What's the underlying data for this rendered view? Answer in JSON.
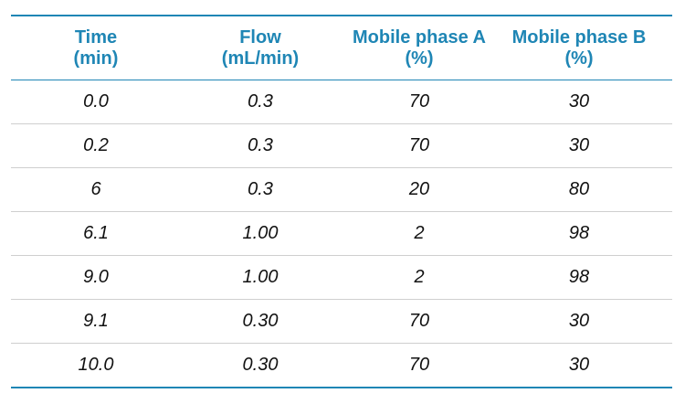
{
  "table": {
    "headers": [
      {
        "line1": "Time",
        "line2": "(min)"
      },
      {
        "line1": "Flow",
        "line2": "(mL/min)"
      },
      {
        "line1": "Mobile phase A",
        "line2": "(%)"
      },
      {
        "line1": "Mobile phase B",
        "line2": "(%)"
      }
    ],
    "rows": [
      [
        "0.0",
        "0.3",
        "70",
        "30"
      ],
      [
        "0.2",
        "0.3",
        "70",
        "30"
      ],
      [
        "6",
        "0.3",
        "20",
        "80"
      ],
      [
        "6.1",
        "1.00",
        "2",
        "98"
      ],
      [
        "9.0",
        "1.00",
        "2",
        "98"
      ],
      [
        "9.1",
        "0.30",
        "70",
        "30"
      ],
      [
        "10.0",
        "0.30",
        "70",
        "30"
      ]
    ]
  },
  "colors": {
    "header_text": "#1f86b5",
    "rule": "#1f86b5",
    "row_divider": "#cfcfcf",
    "cell_text": "#111111"
  }
}
